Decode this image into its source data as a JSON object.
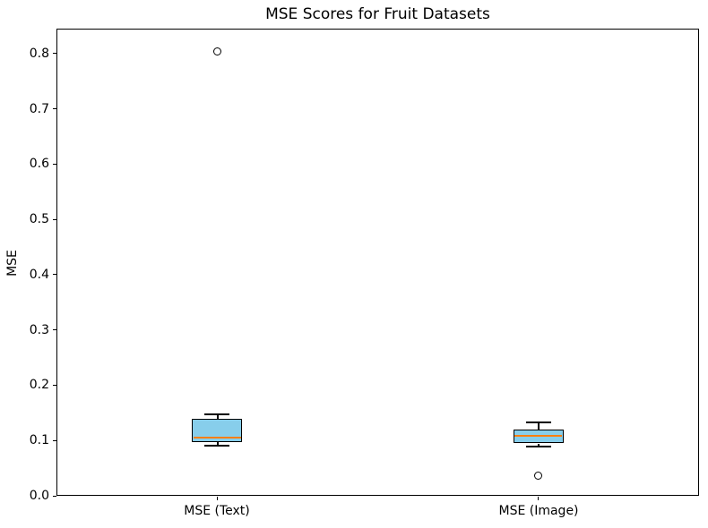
{
  "chart_data": {
    "type": "boxplot",
    "title": "MSE Scores for Fruit Datasets",
    "xlabel": "",
    "ylabel": "MSE",
    "categories": [
      "MSE (Text)",
      "MSE (Image)"
    ],
    "positions": [
      1,
      2
    ],
    "xlim": [
      0.5,
      2.5
    ],
    "ylim": [
      0.0,
      0.845
    ],
    "ytick_values": [
      0.0,
      0.1,
      0.2,
      0.3,
      0.4,
      0.5,
      0.6,
      0.7,
      0.8
    ],
    "ytick_labels": [
      "0.0",
      "0.1",
      "0.2",
      "0.3",
      "0.4",
      "0.5",
      "0.6",
      "0.7",
      "0.8"
    ],
    "box_width_data_units": 0.156,
    "grid": false,
    "legend": null,
    "colors": {
      "box_fill": "#87CEEB",
      "box_edge": "#000000",
      "median": "#ff7f0e",
      "whisker": "#000000",
      "flier_edge": "#000000",
      "background": "#ffffff"
    },
    "series": [
      {
        "name": "MSE (Text)",
        "whislo": 0.091,
        "q1": 0.097,
        "med": 0.106,
        "q3": 0.139,
        "whishi": 0.147,
        "fliers": [
          0.803
        ]
      },
      {
        "name": "MSE (Image)",
        "whislo": 0.089,
        "q1": 0.094,
        "med": 0.108,
        "q3": 0.119,
        "whishi": 0.133,
        "fliers": [
          0.036
        ]
      }
    ]
  }
}
